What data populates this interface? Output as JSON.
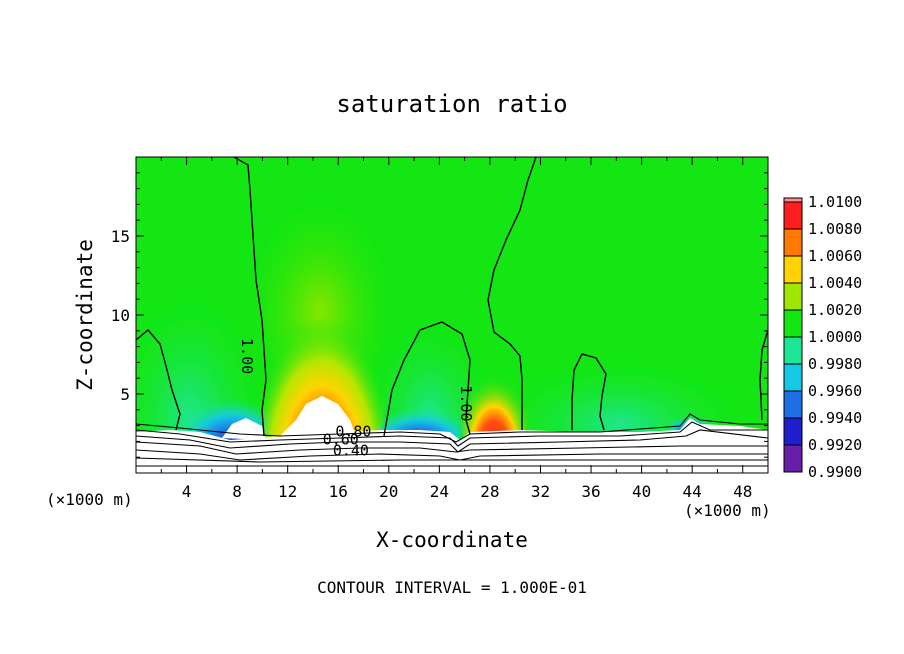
{
  "chart_data": {
    "type": "heatmap",
    "title": "saturation ratio",
    "xlabel": "X-coordinate",
    "ylabel": "Z-coordinate",
    "x_unit_left": "(×1000 m)",
    "x_unit_right": "(×1000 m)",
    "footer": "CONTOUR INTERVAL = 1.000E-01",
    "xlim": [
      0,
      50
    ],
    "ylim": [
      0,
      20
    ],
    "x_ticks": [
      4,
      8,
      12,
      16,
      20,
      24,
      28,
      32,
      36,
      40,
      44,
      48
    ],
    "y_ticks": [
      5,
      10,
      15
    ],
    "colorbar": {
      "levels": [
        "0.9900",
        "0.9920",
        "0.9940",
        "0.9960",
        "0.9980",
        "1.0000",
        "1.0020",
        "1.0040",
        "1.0060",
        "1.0080",
        "1.0100"
      ],
      "colors": [
        "#6a1ea8",
        "#1e1ecc",
        "#1e6ee6",
        "#14c8e6",
        "#1ee696",
        "#14e614",
        "#a0e600",
        "#ffd200",
        "#ff7800",
        "#ff1e1e",
        "#ff8c8c"
      ]
    },
    "contour_labels": [
      {
        "text": "1.00",
        "x": 8.4,
        "y": 7.4
      },
      {
        "text": "1.00",
        "x": 25.7,
        "y": 4.4
      },
      {
        "text": "0.80",
        "x": 17.2,
        "y": 2.3
      },
      {
        "text": "0.60",
        "x": 16.2,
        "y": 1.8
      },
      {
        "text": "0.40",
        "x": 17.0,
        "y": 1.1
      }
    ]
  }
}
